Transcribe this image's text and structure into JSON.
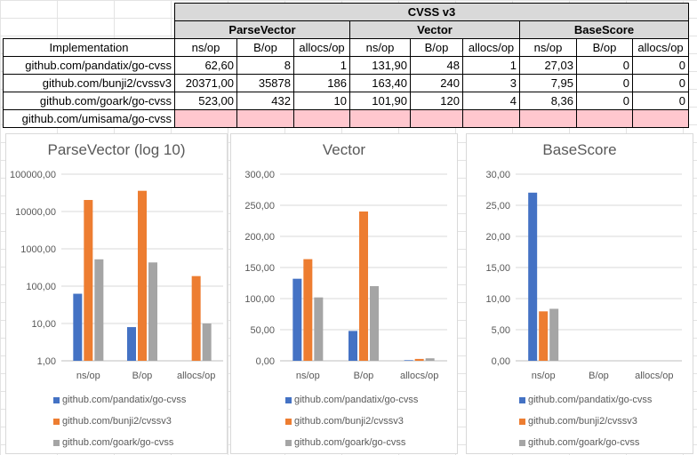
{
  "table": {
    "super_header": "CVSS v3",
    "group_headers": [
      "ParseVector",
      "Vector",
      "BaseScore"
    ],
    "impl_header": "Implementation",
    "metric_headers": [
      "ns/op",
      "B/op",
      "allocs/op"
    ],
    "rows": [
      {
        "name": "github.com/pandatix/go-cvss",
        "values": [
          "62,60",
          "8",
          "1",
          "131,90",
          "48",
          "1",
          "27,03",
          "0",
          "0"
        ]
      },
      {
        "name": "github.com/bunji2/cvssv3",
        "values": [
          "20371,00",
          "35878",
          "186",
          "163,40",
          "240",
          "3",
          "7,95",
          "0",
          "0"
        ]
      },
      {
        "name": "github.com/goark/go-cvss",
        "values": [
          "523,00",
          "432",
          "10",
          "101,90",
          "120",
          "4",
          "8,36",
          "0",
          "0"
        ]
      },
      {
        "name": "github.com/umisama/go-cvss",
        "values": [
          "",
          "",
          "",
          "",
          "",
          "",
          "",
          "",
          ""
        ]
      }
    ]
  },
  "colors": {
    "series": [
      "#4472c4",
      "#ed7d31",
      "#a5a5a5"
    ],
    "highlight": "#ffc7ce"
  },
  "chart_data": [
    {
      "type": "bar",
      "title": "ParseVector (log 10)",
      "scale": "log",
      "categories": [
        "ns/op",
        "B/op",
        "allocs/op"
      ],
      "ylim": [
        1,
        100000
      ],
      "yticks": [
        "1,00",
        "10,00",
        "100,00",
        "1000,00",
        "10000,00",
        "100000,00"
      ],
      "grid": true,
      "legend": "bottom",
      "series": [
        {
          "name": "github.com/pandatix/go-cvss",
          "values": [
            62.6,
            8,
            1
          ]
        },
        {
          "name": "github.com/bunji2/cvssv3",
          "values": [
            20371,
            35878,
            186
          ]
        },
        {
          "name": "github.com/goark/go-cvss",
          "values": [
            523,
            432,
            10
          ]
        }
      ]
    },
    {
      "type": "bar",
      "title": "Vector",
      "scale": "linear",
      "categories": [
        "ns/op",
        "B/op",
        "allocs/op"
      ],
      "ylim": [
        0,
        300
      ],
      "yticks": [
        "0,00",
        "50,00",
        "100,00",
        "150,00",
        "200,00",
        "250,00",
        "300,00"
      ],
      "grid": true,
      "legend": "bottom",
      "series": [
        {
          "name": "github.com/pandatix/go-cvss",
          "values": [
            131.9,
            48,
            1
          ]
        },
        {
          "name": "github.com/bunji2/cvssv3",
          "values": [
            163.4,
            240,
            3
          ]
        },
        {
          "name": "github.com/goark/go-cvss",
          "values": [
            101.9,
            120,
            4
          ]
        }
      ]
    },
    {
      "type": "bar",
      "title": "BaseScore",
      "scale": "linear",
      "categories": [
        "ns/op",
        "B/op",
        "allocs/op"
      ],
      "ylim": [
        0,
        30
      ],
      "yticks": [
        "0,00",
        "5,00",
        "10,00",
        "15,00",
        "20,00",
        "25,00",
        "30,00"
      ],
      "grid": true,
      "legend": "bottom",
      "series": [
        {
          "name": "github.com/pandatix/go-cvss",
          "values": [
            27.03,
            0,
            0
          ]
        },
        {
          "name": "github.com/bunji2/cvssv3",
          "values": [
            7.95,
            0,
            0
          ]
        },
        {
          "name": "github.com/goark/go-cvss",
          "values": [
            8.36,
            0,
            0
          ]
        }
      ]
    }
  ]
}
